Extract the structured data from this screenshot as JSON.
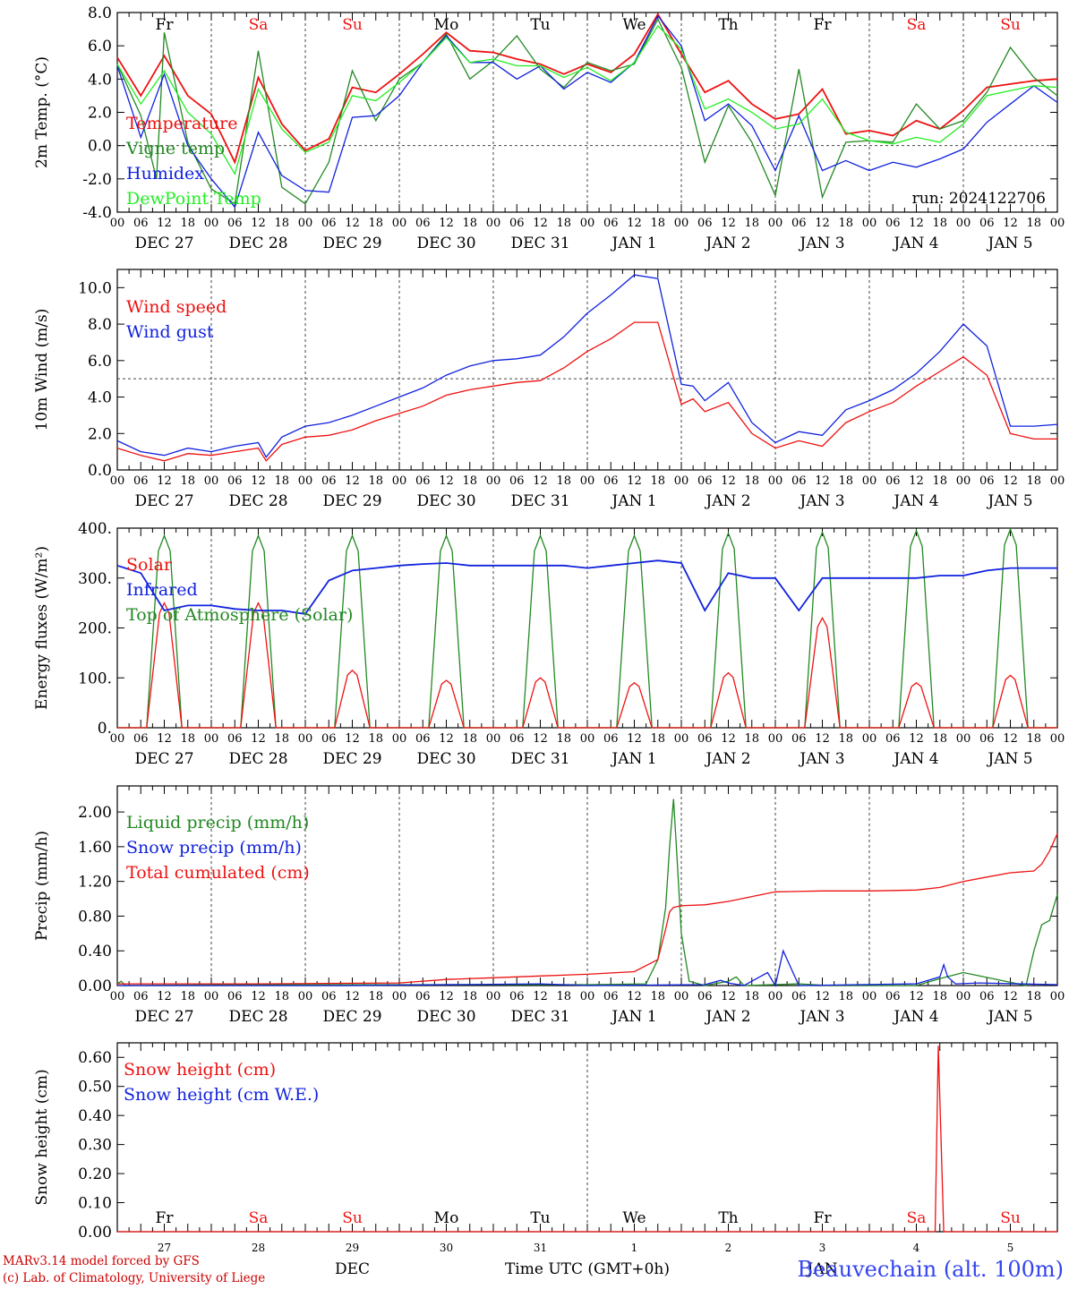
{
  "station": "Beauvechain (alt. 100m)",
  "footer": {
    "model": "MARv3.14 model forced by GFS",
    "credit": "(c) Lab. of Climatology, University of Liege",
    "month": "DEC",
    "month2": "JAN",
    "time_label": "Time UTC (GMT+0h)"
  },
  "run": "run: 2024122706",
  "colors": {
    "red": "#ee1111",
    "green": "#228822",
    "blue": "#1122dd",
    "lightgreen": "#22ee22",
    "weekend": "#ee1111",
    "weekday": "#000000"
  },
  "time_axis": {
    "hour_ticks": [
      "00",
      "06",
      "12",
      "18"
    ],
    "final_tick": "00",
    "date_labels": [
      "DEC 27",
      "DEC 28",
      "DEC 29",
      "DEC 30",
      "DEC 31",
      "JAN  1",
      "JAN  2",
      "JAN  3",
      "JAN  4",
      "JAN  5"
    ],
    "day_names": [
      "Fr",
      "Sa",
      "Su",
      "Mo",
      "Tu",
      "We",
      "Th",
      "Fr",
      "Sa",
      "Su"
    ],
    "weekend": [
      false,
      true,
      true,
      false,
      false,
      false,
      false,
      false,
      true,
      true
    ],
    "day_numbers": [
      "27",
      "28",
      "29",
      "30",
      "31",
      "1",
      "2",
      "3",
      "4",
      "5"
    ]
  },
  "chart_data": [
    {
      "type": "line",
      "ylabel": "2m Temp. (°C)",
      "ylim": [
        -4,
        8
      ],
      "yticks": [
        "-4.0",
        "-2.0",
        "0.0",
        "2.0",
        "4.0",
        "6.0",
        "8.0"
      ],
      "ytick_values": [
        -4,
        -2,
        0,
        2,
        4,
        6,
        8
      ],
      "xlim_hours": [
        0,
        240
      ],
      "ref_line": 0,
      "legend": [
        "Temperature",
        "Vigne temp",
        "Humidex",
        "DewPoint Temp"
      ],
      "series": [
        {
          "name": "Temperature",
          "color": "red",
          "x": [
            0,
            6,
            12,
            18,
            24,
            30,
            36,
            42,
            48,
            54,
            60,
            66,
            72,
            78,
            84,
            90,
            96,
            102,
            108,
            114,
            120,
            126,
            132,
            138,
            144,
            150,
            156,
            162,
            168,
            174,
            180,
            186,
            192,
            198,
            204,
            210,
            216,
            222,
            228,
            234,
            240
          ],
          "values": [
            5.3,
            3.0,
            5.4,
            3.0,
            1.9,
            -1.0,
            4.1,
            1.3,
            -0.3,
            0.4,
            3.5,
            3.2,
            4.3,
            5.5,
            6.8,
            5.7,
            5.6,
            5.2,
            4.9,
            4.3,
            4.9,
            4.4,
            5.5,
            7.9,
            5.5,
            3.2,
            3.9,
            2.5,
            1.6,
            1.9,
            3.4,
            0.7,
            0.9,
            0.6,
            1.5,
            1.0,
            2.1,
            3.5,
            3.7,
            3.9,
            4.0
          ]
        },
        {
          "name": "Vigne temp",
          "color": "green",
          "x": [
            0,
            6,
            10,
            12,
            18,
            24,
            30,
            36,
            42,
            48,
            54,
            60,
            66,
            72,
            78,
            84,
            90,
            96,
            102,
            108,
            114,
            120,
            126,
            132,
            138,
            144,
            150,
            156,
            162,
            168,
            174,
            180,
            186,
            192,
            198,
            204,
            210,
            216,
            222,
            228,
            234,
            240
          ],
          "values": [
            4.9,
            1.8,
            -2.0,
            6.8,
            0.2,
            -2.6,
            -3.5,
            5.7,
            -2.5,
            -3.5,
            -1.0,
            4.5,
            1.5,
            4.0,
            5.0,
            6.7,
            4.0,
            5.1,
            6.6,
            4.6,
            3.5,
            5.0,
            4.5,
            4.9,
            7.6,
            4.7,
            -1.0,
            2.4,
            0.2,
            -3.0,
            4.6,
            -3.1,
            0.2,
            0.3,
            0.2,
            2.5,
            1.0,
            1.5,
            3.2,
            5.9,
            4.1,
            3.0
          ]
        },
        {
          "name": "Humidex",
          "color": "blue",
          "x": [
            0,
            6,
            12,
            18,
            24,
            30,
            36,
            42,
            48,
            54,
            60,
            66,
            72,
            78,
            84,
            90,
            96,
            102,
            108,
            114,
            120,
            126,
            132,
            138,
            144,
            150,
            156,
            162,
            168,
            174,
            180,
            186,
            192,
            198,
            204,
            210,
            216,
            222,
            228,
            234,
            240
          ],
          "values": [
            4.8,
            0.5,
            4.3,
            0.0,
            -2.0,
            -3.7,
            0.8,
            -1.8,
            -2.7,
            -2.8,
            1.7,
            1.8,
            3.0,
            5.0,
            6.6,
            5.0,
            5.0,
            4.0,
            4.8,
            3.4,
            4.4,
            3.8,
            5.0,
            7.8,
            6.0,
            1.5,
            2.5,
            1.2,
            -1.5,
            1.8,
            -1.5,
            -0.9,
            -1.5,
            -1.0,
            -1.3,
            -0.8,
            -0.2,
            1.4,
            2.5,
            3.6,
            2.6
          ]
        },
        {
          "name": "DewPoint Temp",
          "color": "lightgreen",
          "x": [
            0,
            6,
            12,
            18,
            24,
            30,
            36,
            42,
            48,
            54,
            60,
            66,
            72,
            78,
            84,
            90,
            96,
            102,
            108,
            114,
            120,
            126,
            132,
            138,
            144,
            150,
            156,
            162,
            168,
            174,
            180,
            186,
            192,
            198,
            204,
            210,
            216,
            222,
            228,
            234,
            240
          ],
          "values": [
            4.9,
            2.5,
            4.5,
            2.0,
            0.7,
            -1.7,
            3.4,
            1.0,
            -0.4,
            0.2,
            3.0,
            2.7,
            3.8,
            5.0,
            6.5,
            5.0,
            5.2,
            4.8,
            4.8,
            4.1,
            4.7,
            3.9,
            5.0,
            7.2,
            5.8,
            2.2,
            2.8,
            2.0,
            1.0,
            1.3,
            2.8,
            0.8,
            0.3,
            0.1,
            0.5,
            0.2,
            1.3,
            3.0,
            3.3,
            3.6,
            3.5
          ]
        }
      ]
    },
    {
      "type": "line",
      "ylabel": "10m Wind (m/s)",
      "ylim": [
        0,
        11
      ],
      "yticks": [
        "0.0",
        "2.0",
        "4.0",
        "6.0",
        "8.0",
        "10.0"
      ],
      "ytick_values": [
        0,
        2,
        4,
        6,
        8,
        10
      ],
      "xlim_hours": [
        0,
        240
      ],
      "ref_line": 5,
      "legend": [
        "Wind speed",
        "Wind gust"
      ],
      "series": [
        {
          "name": "Wind speed",
          "color": "red",
          "x": [
            0,
            6,
            12,
            18,
            24,
            30,
            36,
            38,
            42,
            48,
            54,
            60,
            66,
            72,
            78,
            84,
            90,
            96,
            102,
            108,
            114,
            120,
            126,
            132,
            138,
            144,
            147,
            150,
            156,
            162,
            168,
            174,
            180,
            186,
            192,
            198,
            204,
            210,
            216,
            222,
            228,
            234,
            240
          ],
          "values": [
            1.2,
            0.8,
            0.5,
            0.9,
            0.8,
            1.0,
            1.2,
            0.5,
            1.4,
            1.8,
            1.9,
            2.2,
            2.7,
            3.1,
            3.5,
            4.1,
            4.4,
            4.6,
            4.8,
            4.9,
            5.6,
            6.5,
            7.2,
            8.1,
            8.1,
            3.6,
            3.9,
            3.2,
            3.7,
            2.0,
            1.2,
            1.6,
            1.3,
            2.6,
            3.2,
            3.7,
            4.6,
            5.4,
            6.2,
            5.2,
            2.0,
            1.7,
            1.7
          ]
        },
        {
          "name": "Wind gust",
          "color": "blue",
          "x": [
            0,
            6,
            12,
            18,
            24,
            30,
            36,
            38,
            42,
            48,
            54,
            60,
            66,
            72,
            78,
            84,
            90,
            96,
            102,
            108,
            114,
            120,
            126,
            132,
            138,
            144,
            147,
            150,
            156,
            162,
            168,
            174,
            180,
            186,
            192,
            198,
            204,
            210,
            216,
            222,
            228,
            234,
            240
          ],
          "values": [
            1.6,
            1.0,
            0.8,
            1.2,
            1.0,
            1.3,
            1.5,
            0.7,
            1.8,
            2.4,
            2.6,
            3.0,
            3.5,
            4.0,
            4.5,
            5.2,
            5.7,
            6.0,
            6.1,
            6.3,
            7.3,
            8.6,
            9.6,
            10.7,
            10.5,
            4.7,
            4.6,
            3.8,
            4.8,
            2.6,
            1.5,
            2.1,
            1.9,
            3.3,
            3.8,
            4.4,
            5.3,
            6.5,
            8.0,
            6.8,
            2.4,
            2.4,
            2.5
          ]
        }
      ]
    },
    {
      "type": "line",
      "ylabel": "Energy fluxes (W/m²)",
      "ylim": [
        0,
        400
      ],
      "yticks": [
        "0.",
        "100.",
        "200.",
        "300.",
        "400."
      ],
      "ytick_values": [
        0,
        100,
        200,
        300,
        400
      ],
      "xlim_hours": [
        0,
        240
      ],
      "legend": [
        "Solar",
        "Infrared",
        "Top of Atmosphere (Solar)"
      ],
      "solar_peaks": [
        250,
        250,
        115,
        95,
        100,
        90,
        110,
        220,
        90,
        105
      ],
      "toa_peaks": [
        385,
        385,
        385,
        385,
        385,
        385,
        390,
        392,
        395,
        398
      ],
      "series": [
        {
          "name": "Infrared",
          "color": "blue",
          "x": [
            0,
            6,
            12,
            18,
            24,
            30,
            36,
            42,
            48,
            54,
            60,
            66,
            72,
            78,
            84,
            90,
            96,
            102,
            108,
            114,
            120,
            126,
            132,
            138,
            144,
            150,
            156,
            162,
            168,
            174,
            180,
            186,
            192,
            198,
            204,
            210,
            216,
            222,
            228,
            234,
            240
          ],
          "values": [
            325,
            310,
            235,
            245,
            245,
            238,
            235,
            235,
            228,
            295,
            315,
            320,
            325,
            328,
            330,
            325,
            325,
            325,
            325,
            325,
            320,
            325,
            330,
            335,
            330,
            235,
            310,
            300,
            300,
            235,
            300,
            300,
            300,
            300,
            300,
            305,
            305,
            315,
            320,
            320,
            320
          ]
        }
      ]
    },
    {
      "type": "line",
      "ylabel": "Precip (mm/h)",
      "ylim": [
        0,
        2.3
      ],
      "yticks": [
        "0.00",
        "0.40",
        "0.80",
        "1.20",
        "1.60",
        "2.00"
      ],
      "ytick_values": [
        0,
        0.4,
        0.8,
        1.2,
        1.6,
        2.0
      ],
      "xlim_hours": [
        0,
        240
      ],
      "legend": [
        "Liquid precip (mm/h)",
        "Snow precip (mm/h)",
        "Total cumulated (cm)"
      ],
      "series": [
        {
          "name": "Liquid precip (mm/h)",
          "color": "green",
          "x": [
            0,
            1,
            2,
            30,
            60,
            120,
            135,
            138,
            140,
            141,
            142,
            143,
            144,
            146,
            150,
            156,
            158,
            160,
            174,
            182,
            204,
            210,
            216,
            232,
            234,
            236,
            238,
            240
          ],
          "values": [
            0.02,
            0.05,
            0.0,
            0.01,
            0.01,
            0.01,
            0.02,
            0.3,
            0.9,
            1.6,
            2.15,
            1.4,
            0.6,
            0.05,
            0.0,
            0.05,
            0.1,
            0.0,
            0.02,
            0.0,
            0.0,
            0.08,
            0.15,
            0.0,
            0.4,
            0.7,
            0.75,
            1.05
          ]
        },
        {
          "name": "Snow precip (mm/h)",
          "color": "blue",
          "x": [
            0,
            60,
            108,
            120,
            150,
            154,
            156,
            160,
            166,
            168,
            170,
            174,
            204,
            210,
            211,
            212,
            214,
            220,
            240
          ],
          "values": [
            0,
            0,
            0.02,
            0.0,
            0.01,
            0.06,
            0.03,
            0.0,
            0.15,
            0.0,
            0.4,
            0.0,
            0.02,
            0.1,
            0.24,
            0.1,
            0.02,
            0.03,
            0.01
          ]
        },
        {
          "name": "Total cumulated (cm)",
          "color": "red",
          "x": [
            0,
            36,
            72,
            84,
            96,
            108,
            120,
            132,
            138,
            140,
            141,
            142,
            144,
            150,
            156,
            168,
            180,
            192,
            204,
            210,
            216,
            222,
            228,
            234,
            236,
            238,
            240
          ],
          "values": [
            0.02,
            0.02,
            0.03,
            0.07,
            0.09,
            0.11,
            0.13,
            0.16,
            0.3,
            0.65,
            0.85,
            0.9,
            0.92,
            0.93,
            0.97,
            1.08,
            1.09,
            1.09,
            1.1,
            1.13,
            1.2,
            1.25,
            1.3,
            1.32,
            1.4,
            1.55,
            1.75
          ]
        }
      ]
    },
    {
      "type": "line",
      "ylabel": "Snow height (cm)",
      "ylim": [
        0,
        0.65
      ],
      "yticks": [
        "0.00",
        "0.10",
        "0.20",
        "0.30",
        "0.40",
        "0.50",
        "0.60"
      ],
      "ytick_values": [
        0,
        0.1,
        0.2,
        0.3,
        0.4,
        0.5,
        0.6
      ],
      "xlim_hours": [
        0,
        240
      ],
      "legend": [
        "Snow height (cm)",
        "Snow height (cm W.E.)"
      ],
      "series": [
        {
          "name": "Snow height (cm)",
          "color": "red",
          "x": [
            0,
            208.8,
            209.6,
            211,
            240
          ],
          "values": [
            0,
            0,
            0.64,
            0,
            0
          ]
        }
      ]
    }
  ]
}
